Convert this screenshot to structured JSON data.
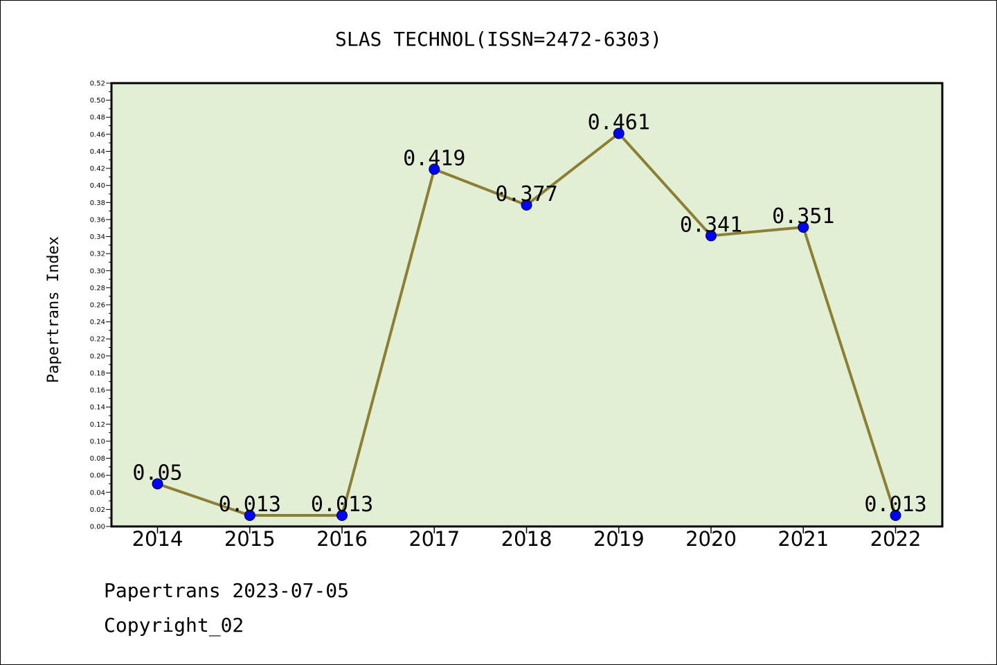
{
  "chart_data": {
    "type": "line",
    "title": "SLAS TECHNOL(ISSN=2472-6303)",
    "xlabel": "",
    "ylabel": "Papertrans Index",
    "categories": [
      "2014",
      "2015",
      "2016",
      "2017",
      "2018",
      "2019",
      "2020",
      "2021",
      "2022"
    ],
    "series": [
      {
        "values": [
          0.05,
          0.013,
          0.013,
          0.419,
          0.377,
          0.461,
          0.341,
          0.351,
          0.013
        ],
        "labels": [
          "0.05",
          "0.013",
          "0.013",
          "0.419",
          "0.377",
          "0.461",
          "0.341",
          "0.351",
          "0.013"
        ]
      }
    ],
    "ylim": [
      0,
      0.52
    ],
    "yticks": [
      "0.00",
      "0.02",
      "0.04",
      "0.06",
      "0.08",
      "0.10",
      "0.12",
      "0.14",
      "0.16",
      "0.18",
      "0.20",
      "0.22",
      "0.24",
      "0.26",
      "0.28",
      "0.30",
      "0.32",
      "0.34",
      "0.36",
      "0.38",
      "0.40",
      "0.42",
      "0.44",
      "0.46",
      "0.48",
      "0.50",
      "0.52"
    ],
    "grid": false,
    "legend": "none",
    "colors": {
      "plot_background": "#e2efd5",
      "line": "#8c7f33",
      "marker": "#0000ff"
    }
  },
  "footer": {
    "date_line": "Papertrans 2023-07-05",
    "copyright": "Copyright_02"
  }
}
